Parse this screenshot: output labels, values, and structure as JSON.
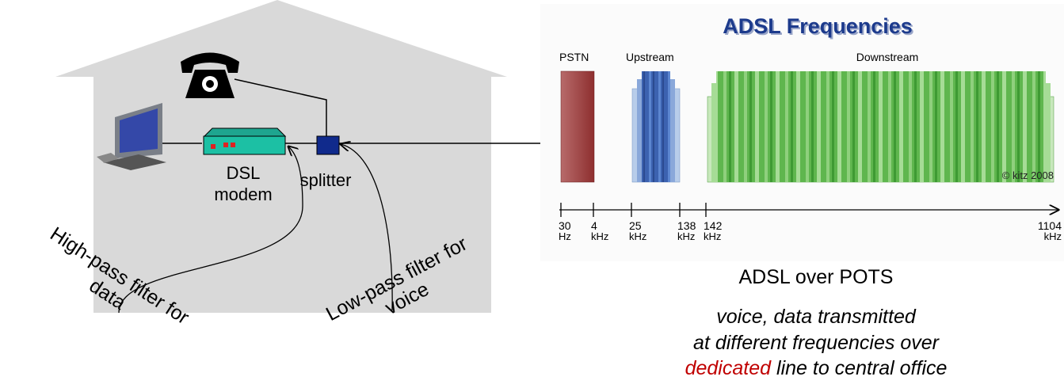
{
  "house": {
    "modem_label": [
      "DSL",
      "modem"
    ],
    "splitter_label": "splitter",
    "high_pass": [
      "High-pass filter for",
      "data"
    ],
    "low_pass": [
      "Low-pass filter for",
      "voice"
    ]
  },
  "spectrum": {
    "title": "ADSL Frequencies",
    "bands": [
      "PSTN",
      "Upstream",
      "Downstream"
    ],
    "credit": "© kitz 2008",
    "axis_labels": [
      {
        "value": "30",
        "unit": "Hz"
      },
      {
        "value": "4",
        "unit": "kHz"
      },
      {
        "value": "25",
        "unit": "kHz"
      },
      {
        "value": "138",
        "unit": "kHz"
      },
      {
        "value": "142",
        "unit": "kHz"
      },
      {
        "value": "1104",
        "unit": "kHz"
      }
    ]
  },
  "caption": {
    "title": "ADSL over POTS",
    "lines": [
      "voice, data transmitted",
      "at different frequencies over"
    ],
    "highlight": "dedicated",
    "rest": "line to central office"
  }
}
